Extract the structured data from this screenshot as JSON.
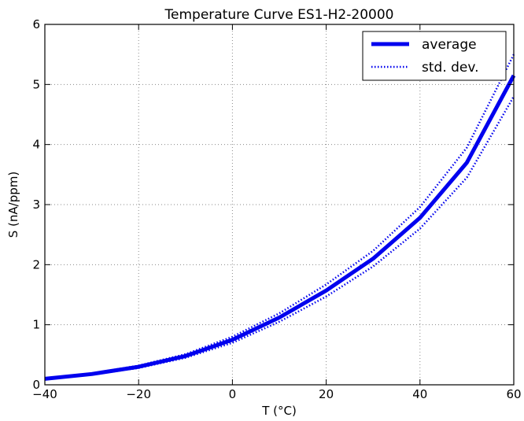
{
  "chart_data": {
    "type": "line",
    "title": "Temperature Curve ES1-H2-20000",
    "xlabel": "T (°C)",
    "ylabel": "S (nA/ppm)",
    "xlim": [
      -40,
      60
    ],
    "ylim": [
      0,
      6
    ],
    "xticks": [
      -40,
      -20,
      0,
      20,
      40,
      60
    ],
    "xtick_labels": [
      "−40",
      "−20",
      "0",
      "20",
      "40",
      "60"
    ],
    "yticks": [
      0,
      1,
      2,
      3,
      4,
      5,
      6
    ],
    "ytick_labels": [
      "0",
      "1",
      "2",
      "3",
      "4",
      "5",
      "6"
    ],
    "grid": true,
    "legend_position": "top-right",
    "x": [
      -40,
      -30,
      -20,
      -10,
      0,
      10,
      20,
      30,
      40,
      50,
      60
    ],
    "series": [
      {
        "name": "average",
        "style": "solid",
        "color": "#0000ee",
        "values": [
          0.1,
          0.18,
          0.3,
          0.48,
          0.75,
          1.12,
          1.57,
          2.1,
          2.78,
          3.7,
          5.15
        ]
      },
      {
        "name": "std. dev.",
        "style": "dotted",
        "color": "#0000ee",
        "values": [
          0.11,
          0.19,
          0.32,
          0.51,
          0.8,
          1.19,
          1.67,
          2.23,
          2.96,
          3.95,
          5.5
        ]
      },
      {
        "name": "",
        "style": "dotted",
        "color": "#0000ee",
        "values": [
          0.09,
          0.17,
          0.28,
          0.45,
          0.7,
          1.05,
          1.47,
          1.97,
          2.6,
          3.45,
          4.8
        ]
      }
    ]
  }
}
